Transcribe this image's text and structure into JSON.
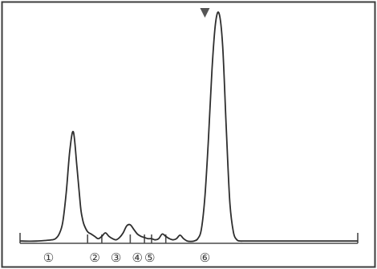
{
  "chart_data": {
    "type": "line",
    "title": "",
    "xlabel": "",
    "ylabel": "",
    "ylim": [
      0,
      100
    ],
    "grid": false,
    "legend": "none",
    "line_color": "#2e2e2e",
    "frame_color": "#3c3c3c",
    "baseline_color": "#4a4a4a",
    "marker_color": "#555555",
    "background": "#ffffff",
    "x": [
      0,
      3,
      5,
      7,
      9,
      10,
      11,
      12,
      13,
      14,
      15,
      16,
      17,
      17.5,
      18,
      19,
      20,
      21,
      22,
      23,
      24,
      25,
      26,
      27,
      28,
      29,
      30,
      31,
      32,
      33,
      34,
      35,
      36,
      37,
      38,
      39,
      40,
      41,
      42,
      43,
      44,
      45,
      46,
      47,
      48,
      49,
      50,
      51,
      52,
      53,
      54,
      55,
      56,
      57,
      58,
      59,
      60,
      61,
      62,
      63,
      64,
      65,
      66,
      67,
      68,
      69,
      70,
      71,
      72,
      73,
      74,
      75,
      76,
      77,
      78,
      79,
      80,
      81,
      82,
      83,
      84,
      85,
      86,
      87,
      88,
      89,
      90,
      91,
      92,
      93,
      94,
      95
    ],
    "y": [
      1,
      0.9,
      1,
      1.2,
      1.5,
      2,
      4,
      9,
      22,
      40,
      48,
      33,
      16,
      11,
      8,
      5,
      4,
      3,
      2,
      3,
      4.5,
      3,
      2,
      1.5,
      2.5,
      4.5,
      7.5,
      8,
      6,
      4,
      3,
      2.5,
      2,
      2,
      1.5,
      2,
      4,
      3,
      2,
      1.5,
      2,
      3.5,
      2,
      1,
      0.8,
      1,
      2,
      6,
      20,
      45,
      75,
      95,
      99,
      85,
      50,
      18,
      5,
      1.5,
      1,
      1,
      1,
      1,
      1,
      1,
      1,
      1,
      1,
      1,
      1,
      1,
      1,
      1,
      1,
      1,
      1,
      1,
      1,
      1,
      1,
      1,
      1,
      1,
      1,
      1,
      1,
      1,
      1,
      1,
      1,
      1,
      1,
      1
    ],
    "fraction_boundaries": [
      19,
      23,
      31,
      35,
      37,
      41
    ],
    "fractions": [
      {
        "label": "①",
        "x": 8
      },
      {
        "label": "②",
        "x": 21
      },
      {
        "label": "③",
        "x": 27
      },
      {
        "label": "④",
        "x": 33
      },
      {
        "label": "⑤",
        "x": 36.5
      },
      {
        "label": "⑥",
        "x": 52
      }
    ],
    "application_marker_x": 52
  }
}
